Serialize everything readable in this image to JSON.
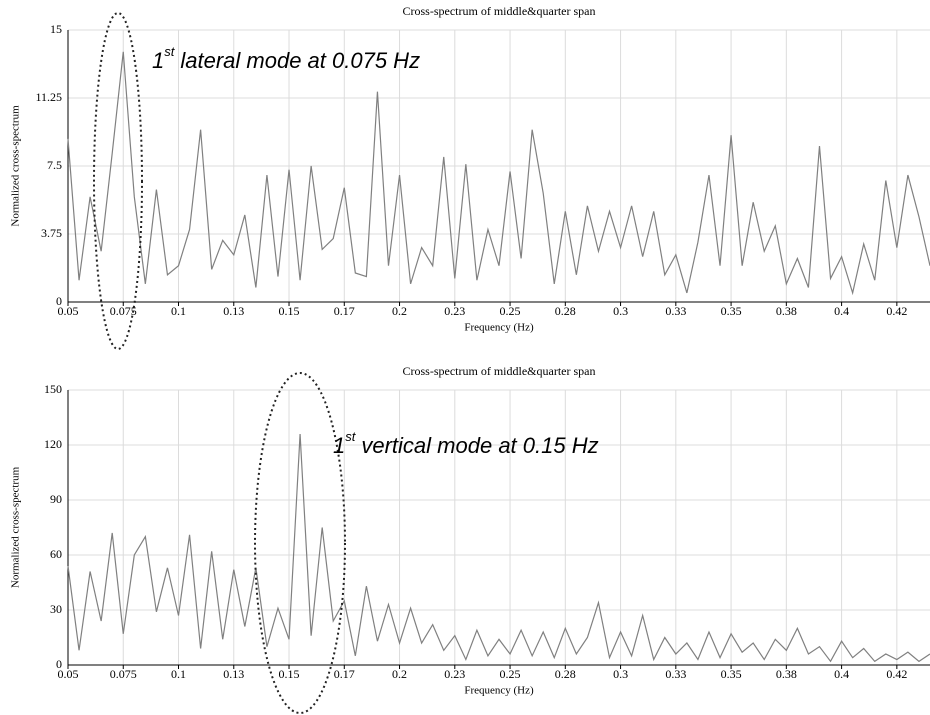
{
  "chart_data": [
    {
      "type": "line",
      "title": "Cross-spectrum of middle&quarter span",
      "xlabel": "Frequency (Hz)",
      "ylabel": "Normalized cross-spectrum",
      "annotation": [
        "1",
        "st",
        "lateral mode at 0.075 Hz"
      ],
      "xlim": [
        0.05,
        0.44
      ],
      "ylim": [
        0,
        15
      ],
      "xticks": [
        0.05,
        0.075,
        0.1,
        {
          "value": 0.125,
          "label": "0.13"
        },
        0.15,
        {
          "value": 0.175,
          "label": "0.17"
        },
        0.2,
        {
          "value": 0.225,
          "label": "0.23"
        },
        0.25,
        {
          "value": 0.275,
          "label": "0.28"
        },
        0.3,
        {
          "value": 0.325,
          "label": "0.33"
        },
        0.35,
        {
          "value": 0.375,
          "label": "0.38"
        },
        0.4,
        {
          "value": 0.425,
          "label": "0.42"
        }
      ],
      "yticks": [
        0,
        3.75,
        7.5,
        11.25,
        15
      ],
      "grid": true,
      "x": [
        0.05,
        0.055,
        0.06,
        0.065,
        0.07,
        0.075,
        0.08,
        0.085,
        0.09,
        0.095,
        0.1,
        0.105,
        0.11,
        0.115,
        0.12,
        0.125,
        0.13,
        0.135,
        0.14,
        0.145,
        0.15,
        0.155,
        0.16,
        0.165,
        0.17,
        0.175,
        0.18,
        0.185,
        0.19,
        0.195,
        0.2,
        0.205,
        0.21,
        0.215,
        0.22,
        0.225,
        0.23,
        0.235,
        0.24,
        0.245,
        0.25,
        0.255,
        0.26,
        0.265,
        0.27,
        0.275,
        0.28,
        0.285,
        0.29,
        0.295,
        0.3,
        0.305,
        0.31,
        0.315,
        0.32,
        0.325,
        0.33,
        0.335,
        0.34,
        0.345,
        0.35,
        0.355,
        0.36,
        0.365,
        0.37,
        0.375,
        0.38,
        0.385,
        0.39,
        0.395,
        0.4,
        0.405,
        0.41,
        0.415,
        0.42,
        0.425,
        0.43,
        0.435,
        0.44
      ],
      "series": [
        {
          "color": "#808080",
          "values": [
            9.0,
            1.2,
            5.8,
            2.8,
            8.2,
            13.8,
            5.8,
            1.0,
            6.2,
            1.5,
            2.0,
            4.0,
            9.5,
            1.8,
            3.4,
            2.6,
            4.8,
            0.8,
            7.0,
            1.4,
            7.3,
            1.2,
            7.5,
            2.9,
            3.5,
            6.3,
            1.6,
            1.4,
            11.6,
            2.0,
            7.0,
            1.0,
            3.0,
            2.0,
            8.0,
            1.3,
            7.6,
            1.2,
            4.0,
            2.0,
            7.2,
            2.4,
            9.5,
            6.0,
            1.0,
            5.0,
            1.5,
            5.3,
            2.8,
            5.0,
            3.0,
            5.3,
            2.5,
            5.0,
            1.5,
            2.6,
            0.5,
            3.3,
            7.0,
            2.0,
            9.2,
            2.0,
            5.5,
            2.8,
            4.2,
            1.0,
            2.4,
            0.8,
            8.6,
            1.3,
            2.5,
            0.5,
            3.2,
            1.2,
            6.7,
            3.0,
            7.0,
            4.7,
            2.0
          ]
        }
      ]
    },
    {
      "type": "line",
      "title": "Cross-spectrum of middle&quarter span",
      "xlabel": "Frequency (Hz)",
      "ylabel": "Normalized cross-spectrum",
      "annotation": [
        "1",
        "st",
        "vertical mode at 0.15 Hz"
      ],
      "xlim": [
        0.05,
        0.44
      ],
      "ylim": [
        0,
        150
      ],
      "xticks": [
        0.05,
        0.075,
        0.1,
        {
          "value": 0.125,
          "label": "0.13"
        },
        0.15,
        {
          "value": 0.175,
          "label": "0.17"
        },
        0.2,
        {
          "value": 0.225,
          "label": "0.23"
        },
        0.25,
        {
          "value": 0.275,
          "label": "0.28"
        },
        0.3,
        {
          "value": 0.325,
          "label": "0.33"
        },
        0.35,
        {
          "value": 0.375,
          "label": "0.38"
        },
        0.4,
        {
          "value": 0.425,
          "label": "0.42"
        }
      ],
      "yticks": [
        0,
        30,
        60,
        90,
        120,
        150
      ],
      "grid": true,
      "x": [
        0.05,
        0.055,
        0.06,
        0.065,
        0.07,
        0.075,
        0.08,
        0.085,
        0.09,
        0.095,
        0.1,
        0.105,
        0.11,
        0.115,
        0.12,
        0.125,
        0.13,
        0.135,
        0.14,
        0.145,
        0.15,
        0.155,
        0.16,
        0.165,
        0.17,
        0.175,
        0.18,
        0.185,
        0.19,
        0.195,
        0.2,
        0.205,
        0.21,
        0.215,
        0.22,
        0.225,
        0.23,
        0.235,
        0.24,
        0.245,
        0.25,
        0.255,
        0.26,
        0.265,
        0.27,
        0.275,
        0.28,
        0.285,
        0.29,
        0.295,
        0.3,
        0.305,
        0.31,
        0.315,
        0.32,
        0.325,
        0.33,
        0.335,
        0.34,
        0.345,
        0.35,
        0.355,
        0.36,
        0.365,
        0.37,
        0.375,
        0.38,
        0.385,
        0.39,
        0.395,
        0.4,
        0.405,
        0.41,
        0.415,
        0.42,
        0.425,
        0.43,
        0.435,
        0.44
      ],
      "series": [
        {
          "color": "#808080",
          "values": [
            54,
            8,
            51,
            24,
            72,
            17,
            60,
            70,
            29,
            53,
            27,
            71,
            9,
            62,
            14,
            52,
            21,
            53,
            10,
            31,
            14,
            126,
            16,
            75,
            24,
            35,
            5,
            43,
            13,
            33,
            12,
            31,
            12,
            22,
            8,
            16,
            3,
            19,
            5,
            14,
            6,
            19,
            5,
            18,
            4,
            20,
            6,
            15,
            34,
            4,
            18,
            5,
            27,
            3,
            15,
            6,
            12,
            3,
            18,
            4,
            17,
            7,
            12,
            3,
            14,
            8,
            20,
            6,
            10,
            2,
            13,
            4,
            9,
            2,
            6,
            3,
            7,
            2,
            6
          ]
        }
      ]
    }
  ]
}
